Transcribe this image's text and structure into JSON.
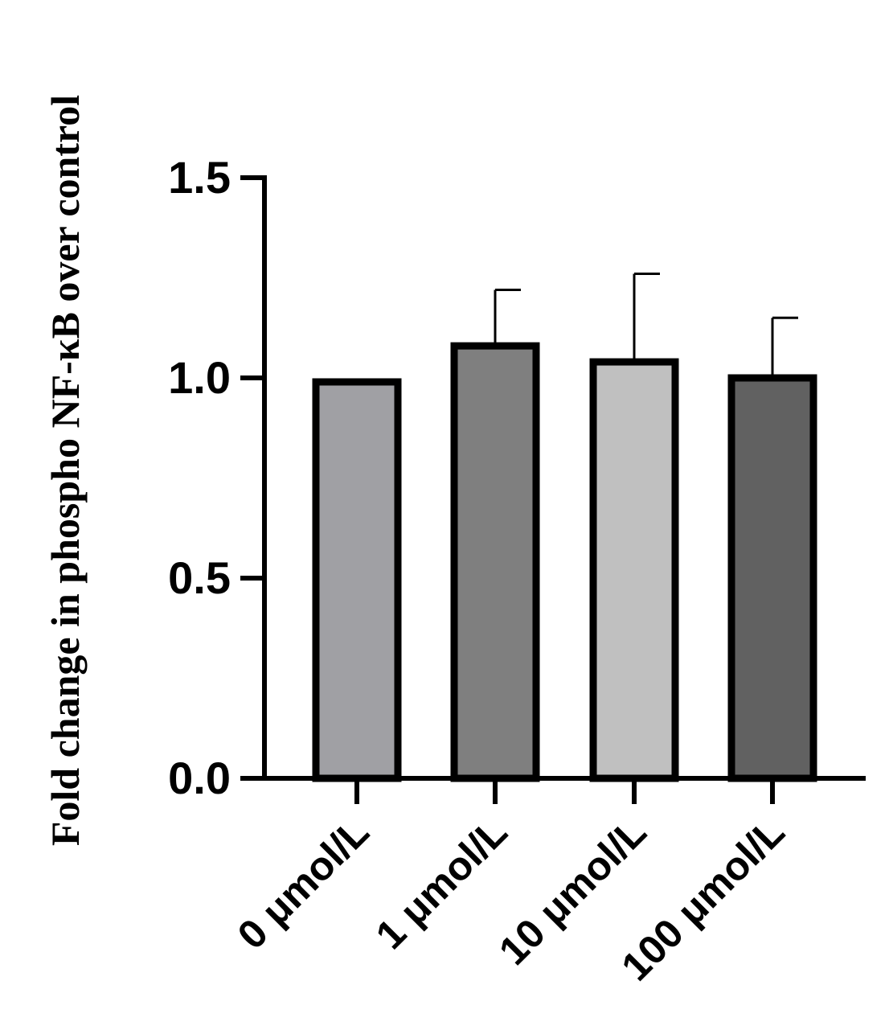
{
  "chart_data": {
    "type": "bar",
    "title": "",
    "xlabel": "",
    "ylabel": "Fold change in phospho NF-κB over control",
    "ylim": [
      0,
      1.5
    ],
    "yticks": [
      "0.0",
      "0.5",
      "1.0",
      "1.5"
    ],
    "categories": [
      "0 μmol/L",
      "1 μmol/L",
      "10 μmol/L",
      "100 μmol/L"
    ],
    "values": [
      0.99,
      1.08,
      1.04,
      1.0
    ],
    "error_upper": [
      0.99,
      1.22,
      1.26,
      1.15
    ],
    "bar_colors": [
      "#a0a0a4",
      "#7f7f7f",
      "#c0c0c0",
      "#616161"
    ],
    "grid": false,
    "legend": "none"
  }
}
